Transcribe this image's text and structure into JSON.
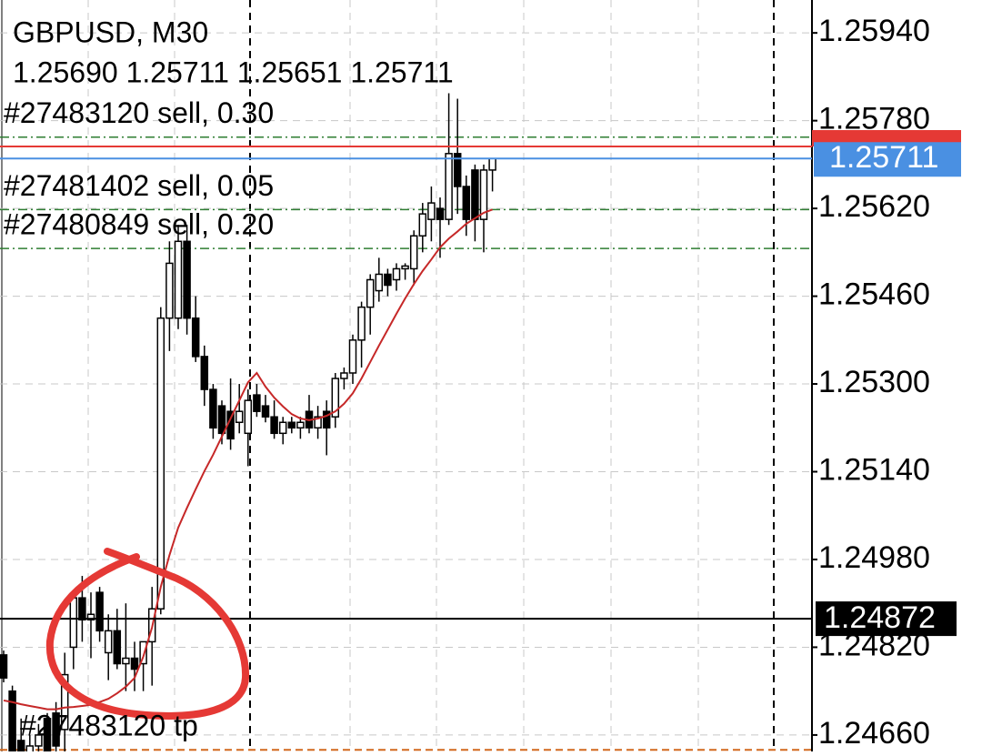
{
  "chart_data": {
    "type": "candlestick",
    "title": "GBPUSD, M30",
    "ohlc_label": "1.25690 1.25711 1.25651 1.25711",
    "open": [
      1.24806,
      1.2474,
      1.2465,
      1.2462,
      1.2464,
      1.2469,
      1.247,
      1.2467,
      1.2482,
      1.2491,
      1.2487,
      1.2492,
      1.2481,
      1.2485,
      1.2479,
      1.248,
      1.2479,
      1.2483,
      1.2489,
      1.2542,
      1.2542,
      1.2556,
      1.2542,
      1.2535,
      1.2529,
      1.2526,
      1.2525,
      1.2523,
      1.2521,
      1.2528,
      1.2526,
      1.2524,
      1.2521,
      1.2523,
      1.2522,
      1.2525,
      1.2522,
      1.2525,
      1.2524,
      1.2531,
      1.2532,
      1.2538,
      1.2544,
      1.2547,
      1.255,
      1.2549,
      1.2551,
      1.2551,
      1.2557,
      1.256,
      1.2562,
      1.256,
      1.2572,
      1.2566,
      1.2569,
      1.256,
      1.2569
    ],
    "high": [
      1.24814,
      1.2475,
      1.2469,
      1.2466,
      1.2468,
      1.247,
      1.2472,
      1.2481,
      1.24915,
      1.2495,
      1.2492,
      1.2493,
      1.2488,
      1.2489,
      1.249,
      1.2483,
      1.2483,
      1.2493,
      1.2544,
      1.2556,
      1.2559,
      1.2559,
      1.2546,
      1.2537,
      1.253,
      1.2527,
      1.2531,
      1.253,
      1.2529,
      1.253,
      1.2528,
      1.2527,
      1.2524,
      1.2524,
      1.2524,
      1.2528,
      1.2526,
      1.2527,
      1.2532,
      1.2533,
      1.2539,
      1.2545,
      1.255,
      1.2553,
      1.2551,
      1.2552,
      1.2552,
      1.2558,
      1.2563,
      1.2566,
      1.2564,
      1.2583,
      1.2582,
      1.2568,
      1.257,
      1.257,
      1.25711
    ],
    "low": [
      1.24756,
      1.2463,
      1.246,
      1.2459,
      1.2461,
      1.2461,
      1.2462,
      1.2462,
      1.2478,
      1.2483,
      1.248,
      1.2483,
      1.2476,
      1.2478,
      1.2474,
      1.2474,
      1.2474,
      1.2475,
      1.2488,
      1.2536,
      1.254,
      1.2539,
      1.2534,
      1.2526,
      1.252,
      1.2519,
      1.2518,
      1.2521,
      1.2515,
      1.2524,
      1.2523,
      1.252,
      1.2519,
      1.2521,
      1.252,
      1.2521,
      1.252,
      1.2517,
      1.2522,
      1.2529,
      1.253,
      1.2533,
      1.2539,
      1.2545,
      1.2546,
      1.2547,
      1.2549,
      1.2548,
      1.2554,
      1.2556,
      1.2553,
      1.2559,
      1.2561,
      1.2557,
      1.2556,
      1.2554,
      1.25651
    ],
    "close": [
      1.24764,
      1.2463,
      1.2462,
      1.2464,
      1.2466,
      1.2463,
      1.2464,
      1.2477,
      1.2491,
      1.2487,
      1.2488,
      1.2485,
      1.2485,
      1.2479,
      1.248,
      1.2478,
      1.2483,
      1.2489,
      1.2542,
      1.2552,
      1.2556,
      1.2542,
      1.2535,
      1.2529,
      1.2522,
      1.2521,
      1.252,
      1.2525,
      1.2527,
      1.2525,
      1.2524,
      1.2521,
      1.2523,
      1.2522,
      1.2523,
      1.2522,
      1.2524,
      1.2522,
      1.2531,
      1.2532,
      1.2538,
      1.2544,
      1.2549,
      1.255,
      1.2548,
      1.2551,
      1.25515,
      1.2557,
      1.2561,
      1.2563,
      1.256,
      1.2572,
      1.2566,
      1.256,
      1.256,
      1.2569,
      1.25711
    ],
    "ma": {
      "color": "#c62828",
      "values": [
        1.24723,
        1.2472,
        1.24716,
        1.24713,
        1.2471,
        1.24707,
        1.24707,
        1.2471,
        1.24711,
        1.24713,
        1.24715,
        1.2472,
        1.24726,
        1.24736,
        1.24748,
        1.24764,
        1.24803,
        1.24856,
        1.2493,
        1.24988,
        1.25038,
        1.25074,
        1.25108,
        1.25141,
        1.25171,
        1.25204,
        1.25237,
        1.2527,
        1.25303,
        1.2532,
        1.25295,
        1.25275,
        1.25259,
        1.25245,
        1.25237,
        1.25234,
        1.25237,
        1.25242,
        1.2525,
        1.25264,
        1.25283,
        1.2531,
        1.2534,
        1.2537,
        1.25399,
        1.25428,
        1.25456,
        1.25482,
        1.25506,
        1.25527,
        1.25549,
        1.25565,
        1.25578,
        1.25592,
        1.25602,
        1.25612,
        1.25618
      ]
    },
    "ylim": [
      1.2463,
      1.26
    ],
    "yticks": [
      {
        "value": 1.2594,
        "label": "1.25940"
      },
      {
        "value": 1.2578,
        "label": "1.25780"
      },
      {
        "value": 1.2562,
        "label": "1.25620"
      },
      {
        "value": 1.2546,
        "label": "1.25460"
      },
      {
        "value": 1.253,
        "label": "1.25300"
      },
      {
        "value": 1.2514,
        "label": "1.25140"
      },
      {
        "value": 1.2498,
        "label": "1.24980"
      },
      {
        "value": 1.2482,
        "label": "1.24820"
      },
      {
        "value": 1.2466,
        "label": "1.24660"
      }
    ],
    "grid": true,
    "bid": {
      "value": 1.25711,
      "color": "#4a90e2"
    },
    "ask": {
      "value": 1.25733,
      "color": "#e53935"
    },
    "marker_line": {
      "value": 1.24872,
      "color": "#000000"
    },
    "orders": [
      {
        "label": "#27483120 sell, 0.30",
        "value": 1.2575
      },
      {
        "label": "#27481402 sell, 0.05",
        "value": 1.25618
      },
      {
        "label": "#27480849 sell, 0.20",
        "value": 1.25547
      }
    ],
    "tp": {
      "label": "#27483120 tp",
      "value": 1.24633
    }
  }
}
